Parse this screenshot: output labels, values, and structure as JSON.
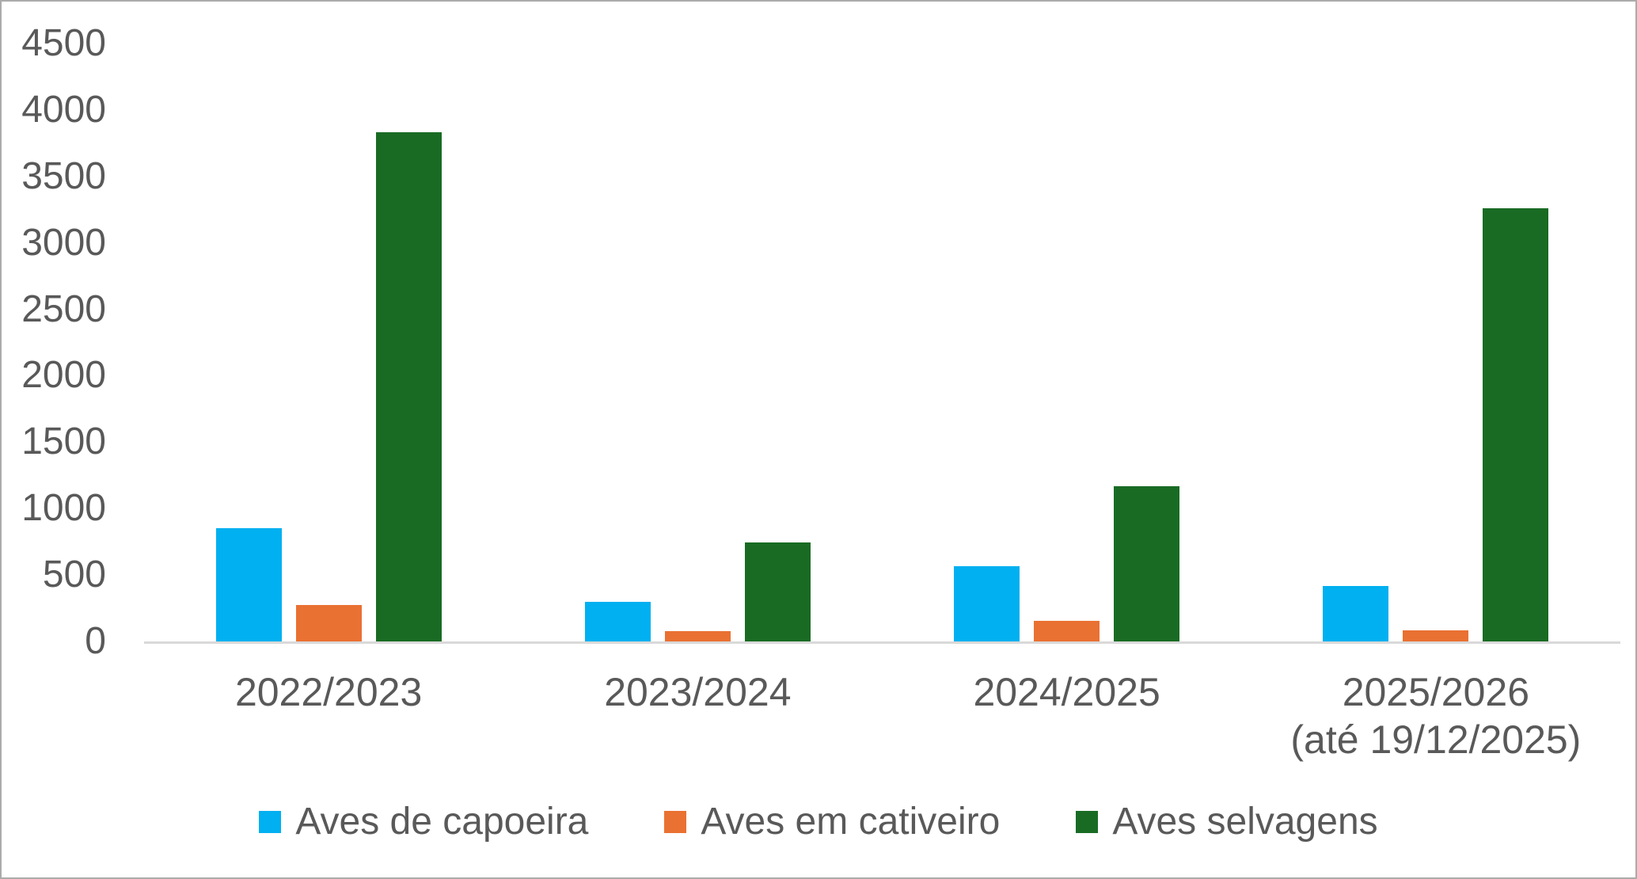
{
  "colors": {
    "text": "#595959",
    "axis_line": "#d9d9d9",
    "frame_border": "#ababab",
    "background": "#ffffff",
    "series_blue": "#00b0f0",
    "series_orange": "#e97132",
    "series_green": "#196b24"
  },
  "chart_data": {
    "type": "bar",
    "title": "",
    "categories": [
      "2022/2023",
      "2023/2024",
      "2024/2025",
      "2025/2026\n(até 19/12/2025)"
    ],
    "series": [
      {
        "name": "Aves de capoeira",
        "color": "#00b0f0",
        "values": [
          855,
          300,
          565,
          420
        ]
      },
      {
        "name": "Aves em cativeiro",
        "color": "#e97132",
        "values": [
          275,
          80,
          155,
          85
        ]
      },
      {
        "name": "Aves selvagens",
        "color": "#196b24",
        "values": [
          3830,
          745,
          1170,
          3260
        ]
      }
    ],
    "ylim": [
      0,
      4500
    ],
    "ytick_step": 500,
    "yticks": [
      0,
      500,
      1000,
      1500,
      2000,
      2500,
      3000,
      3500,
      4000,
      4500
    ],
    "xlabel": "",
    "ylabel": "",
    "grid": false,
    "legend_position": "bottom-center"
  }
}
